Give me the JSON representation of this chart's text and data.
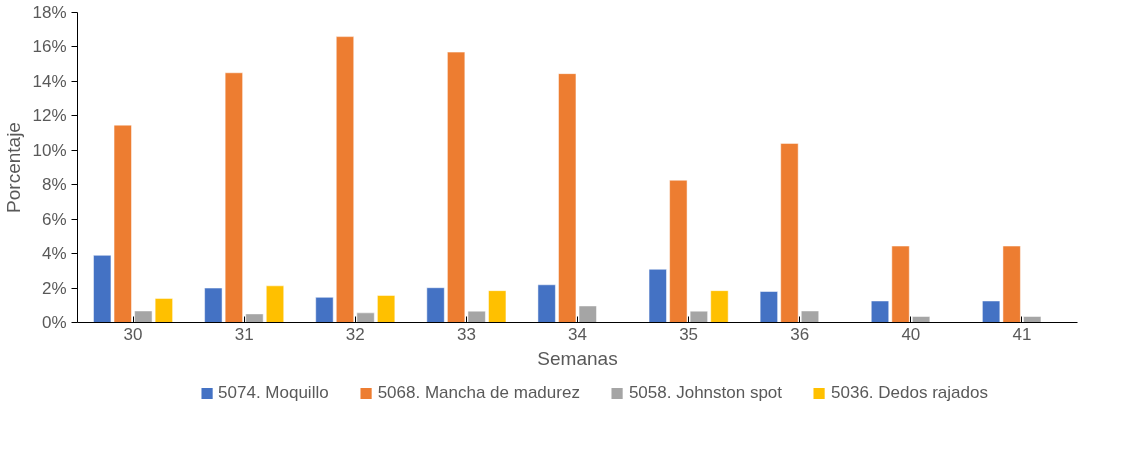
{
  "chart_data": {
    "type": "bar",
    "xlabel": "Semanas",
    "ylabel": "Porcentaje",
    "categories": [
      "30",
      "31",
      "32",
      "33",
      "34",
      "35",
      "36",
      "40",
      "41"
    ],
    "series": [
      {
        "name": "5074. Moquillo",
        "color": "#4472c4",
        "values": [
          3.9,
          2.0,
          1.46,
          2.02,
          2.19,
          3.09,
          1.8,
          1.25,
          1.25
        ]
      },
      {
        "name": "5068. Mancha de madurez",
        "color": "#ed7d31",
        "values": [
          11.46,
          14.5,
          16.6,
          15.7,
          14.45,
          8.26,
          10.4,
          4.44,
          4.44
        ]
      },
      {
        "name": "5058. Johnston spot",
        "color": "#a5a5a5",
        "values": [
          0.67,
          0.5,
          0.56,
          0.66,
          0.96,
          0.66,
          0.67,
          0.35,
          0.35
        ]
      },
      {
        "name": "5036. Dedos rajados",
        "color": "#ffc000",
        "values": [
          1.4,
          2.13,
          1.57,
          1.85,
          null,
          1.85,
          null,
          null,
          null
        ]
      }
    ],
    "ylim": [
      0,
      18
    ],
    "yticks": [
      {
        "value": 0,
        "label": "0%"
      },
      {
        "value": 2,
        "label": "2%"
      },
      {
        "value": 4,
        "label": "4%"
      },
      {
        "value": 6,
        "label": "6%"
      },
      {
        "value": 8,
        "label": "8%"
      },
      {
        "value": 10,
        "label": "10%"
      },
      {
        "value": 12,
        "label": "12%"
      },
      {
        "value": 14,
        "label": "14%"
      },
      {
        "value": 16,
        "label": "16%"
      },
      {
        "value": 18,
        "label": "18%"
      }
    ],
    "grid": false,
    "legend": "bottom"
  }
}
